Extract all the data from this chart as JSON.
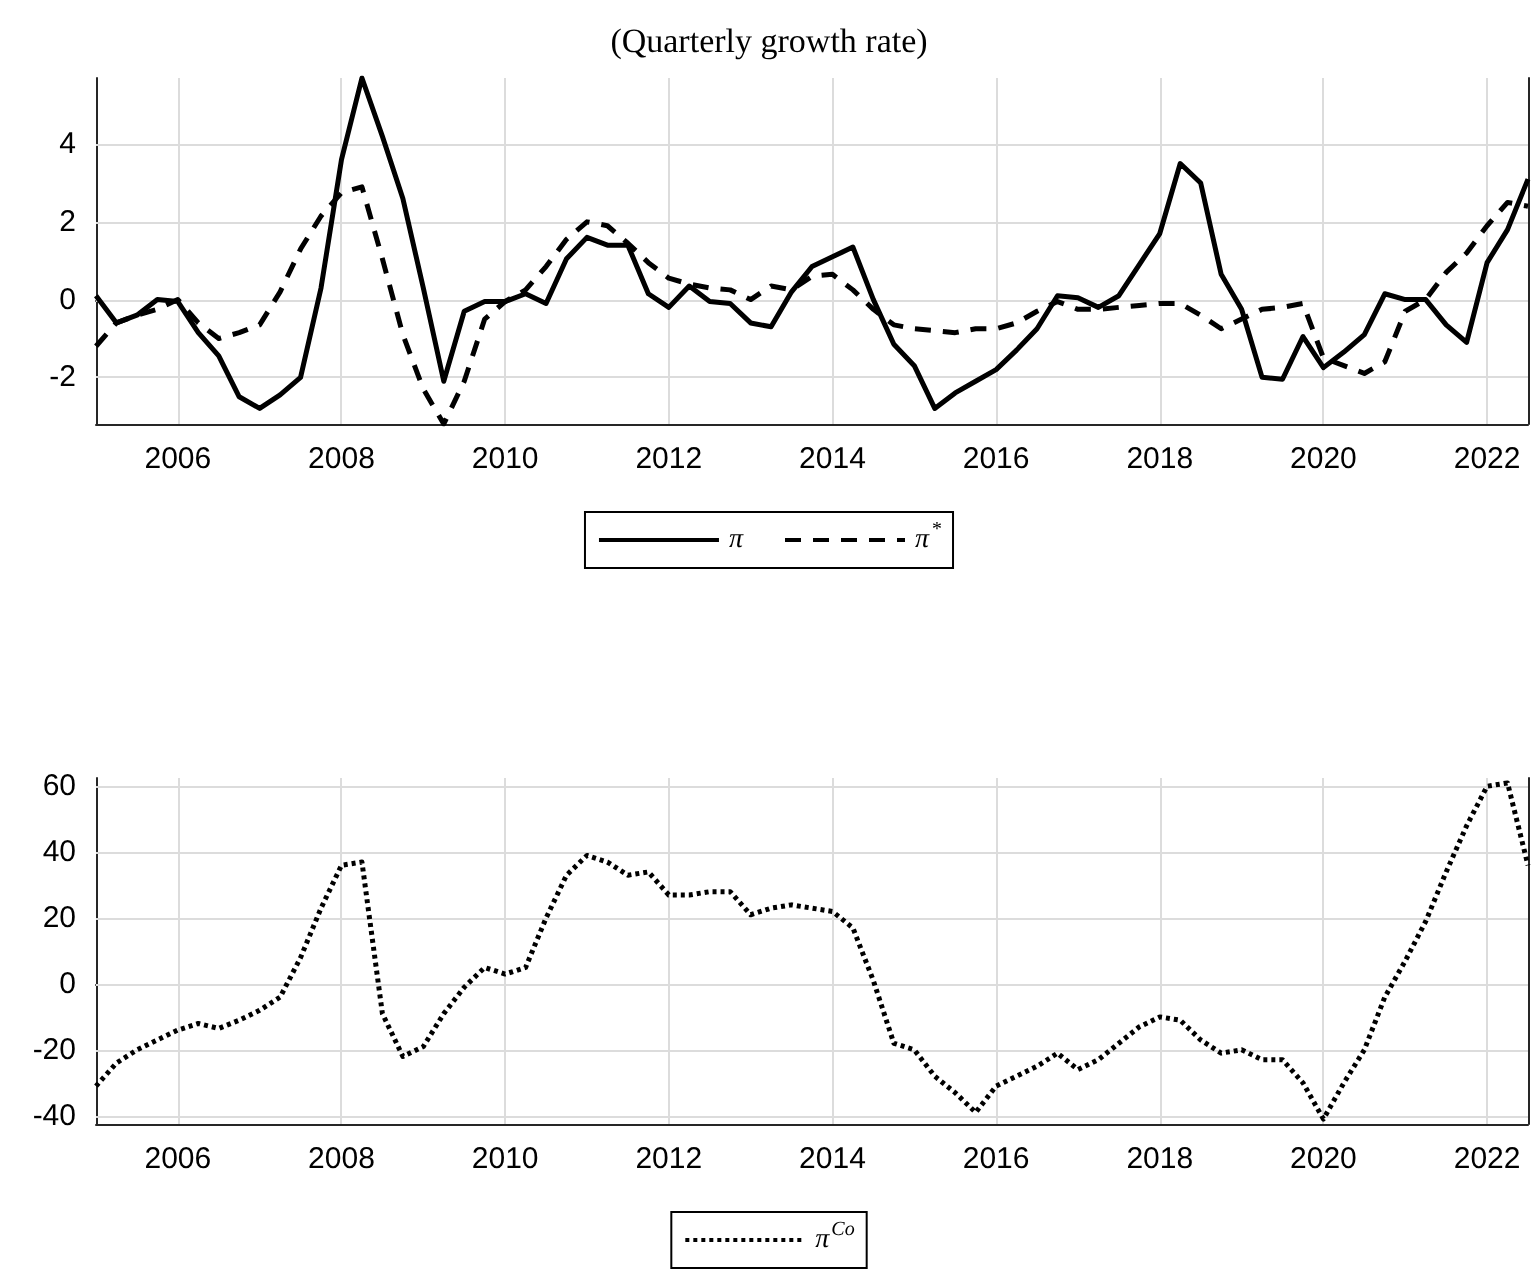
{
  "chart_data": [
    {
      "type": "line",
      "title": "(Quarterly growth rate)",
      "x": [
        2005,
        2005.25,
        2005.5,
        2005.75,
        2006,
        2006.25,
        2006.5,
        2006.75,
        2007,
        2007.25,
        2007.5,
        2007.75,
        2008,
        2008.25,
        2008.5,
        2008.75,
        2009,
        2009.25,
        2009.5,
        2009.75,
        2010,
        2010.25,
        2010.5,
        2010.75,
        2011,
        2011.25,
        2011.5,
        2011.75,
        2012,
        2012.25,
        2012.5,
        2012.75,
        2013,
        2013.25,
        2013.5,
        2013.75,
        2014,
        2014.25,
        2014.5,
        2014.75,
        2015,
        2015.25,
        2015.5,
        2015.75,
        2016,
        2016.25,
        2016.5,
        2016.75,
        2017,
        2017.25,
        2017.5,
        2017.75,
        2018,
        2018.25,
        2018.5,
        2018.75,
        2019,
        2019.25,
        2019.5,
        2019.75,
        2020,
        2020.25,
        2020.5,
        2020.75,
        2021,
        2021.25,
        2021.5,
        2021.75,
        2022,
        2022.25,
        2022.5
      ],
      "series": [
        {
          "name": "π",
          "color": "#000000",
          "line_style": "solid",
          "values": [
            0.1,
            -0.6,
            -0.4,
            0.0,
            -0.05,
            -0.85,
            -1.45,
            -2.5,
            -2.8,
            -2.45,
            -2.0,
            0.3,
            3.6,
            5.7,
            4.2,
            2.6,
            0.3,
            -2.1,
            -0.3,
            -0.05,
            -0.05,
            0.15,
            -0.1,
            1.05,
            1.6,
            1.4,
            1.4,
            0.15,
            -0.2,
            0.35,
            -0.05,
            -0.1,
            -0.6,
            -0.7,
            0.2,
            0.85,
            1.1,
            1.35,
            0.0,
            -1.15,
            -1.7,
            -2.8,
            -2.4,
            -2.1,
            -1.8,
            -1.3,
            -0.75,
            0.1,
            0.05,
            -0.2,
            0.1,
            0.9,
            1.7,
            3.5,
            3.0,
            0.65,
            -0.25,
            -2.0,
            -2.05,
            -0.95,
            -1.75,
            -1.35,
            -0.9,
            0.15,
            0.0,
            0.0,
            -0.65,
            -1.1,
            0.95,
            1.8,
            3.1
          ]
        },
        {
          "name": "π$^{*}$",
          "color": "#000000",
          "line_style": "dashed",
          "values": [
            -1.2,
            -0.6,
            -0.4,
            -0.25,
            0.0,
            -0.6,
            -1.0,
            -0.85,
            -0.65,
            0.2,
            1.3,
            2.15,
            2.75,
            2.9,
            1.05,
            -0.9,
            -2.3,
            -3.2,
            -2.1,
            -0.5,
            -0.05,
            0.25,
            0.85,
            1.55,
            2.0,
            1.9,
            1.45,
            0.95,
            0.55,
            0.4,
            0.3,
            0.25,
            0.0,
            0.35,
            0.25,
            0.6,
            0.65,
            0.25,
            -0.25,
            -0.65,
            -0.75,
            -0.8,
            -0.85,
            -0.75,
            -0.75,
            -0.6,
            -0.3,
            -0.05,
            -0.25,
            -0.25,
            -0.2,
            -0.15,
            -0.1,
            -0.1,
            -0.4,
            -0.75,
            -0.5,
            -0.25,
            -0.2,
            -0.1,
            -1.5,
            -1.7,
            -1.9,
            -1.6,
            -0.3,
            0.0,
            0.7,
            1.2,
            1.9,
            2.5,
            2.4
          ]
        }
      ],
      "xlim": [
        2005,
        2022.5
      ],
      "xticks": [
        2006,
        2008,
        2010,
        2012,
        2014,
        2016,
        2018,
        2020,
        2022
      ],
      "ylim": [
        -3.2,
        5.7
      ],
      "yticks": [
        -2,
        0,
        2,
        4
      ],
      "grid": true,
      "legend": "bottom",
      "marker": "none"
    },
    {
      "type": "line",
      "x": [
        2005,
        2005.25,
        2005.5,
        2005.75,
        2006,
        2006.25,
        2006.5,
        2006.75,
        2007,
        2007.25,
        2007.5,
        2007.75,
        2008,
        2008.25,
        2008.5,
        2008.75,
        2009,
        2009.25,
        2009.5,
        2009.75,
        2010,
        2010.25,
        2010.5,
        2010.75,
        2011,
        2011.25,
        2011.5,
        2011.75,
        2012,
        2012.25,
        2012.5,
        2012.75,
        2013,
        2013.25,
        2013.5,
        2013.75,
        2014,
        2014.25,
        2014.5,
        2014.75,
        2015,
        2015.25,
        2015.5,
        2015.75,
        2016,
        2016.25,
        2016.5,
        2016.75,
        2017,
        2017.25,
        2017.5,
        2017.75,
        2018,
        2018.25,
        2018.5,
        2018.75,
        2019,
        2019.25,
        2019.5,
        2019.75,
        2020,
        2020.25,
        2020.5,
        2020.75,
        2021,
        2021.25,
        2021.5,
        2021.75,
        2022,
        2022.25,
        2022.5
      ],
      "series": [
        {
          "name": "π$^{Co}$",
          "color": "#000000",
          "line_style": "dotted",
          "values": [
            -31,
            -24,
            -20,
            -17,
            -14,
            -12,
            -13.5,
            -11,
            -8,
            -4,
            8,
            23,
            36,
            37,
            -9,
            -22,
            -19,
            -9,
            -1,
            5,
            3,
            5,
            20,
            33,
            39,
            37,
            33,
            34,
            27,
            27,
            28,
            28,
            21,
            23,
            24,
            23,
            22,
            17,
            1,
            -18,
            -20,
            -28,
            -33,
            -39,
            -31,
            -28,
            -25,
            -21,
            -26,
            -23,
            -18,
            -13,
            -10,
            -11,
            -17,
            -21,
            -20,
            -23,
            -23,
            -30,
            -41,
            -30,
            -20,
            -4,
            7,
            19,
            34,
            48,
            60,
            61,
            36
          ]
        }
      ],
      "xlim": [
        2005,
        2022.5
      ],
      "xticks": [
        2006,
        2008,
        2010,
        2012,
        2014,
        2016,
        2018,
        2020,
        2022
      ],
      "ylim": [
        -42.5,
        62.5
      ],
      "yticks": [
        -40,
        -20,
        0,
        20,
        40,
        60
      ],
      "grid": true,
      "legend": "bottom",
      "marker": "none"
    }
  ]
}
